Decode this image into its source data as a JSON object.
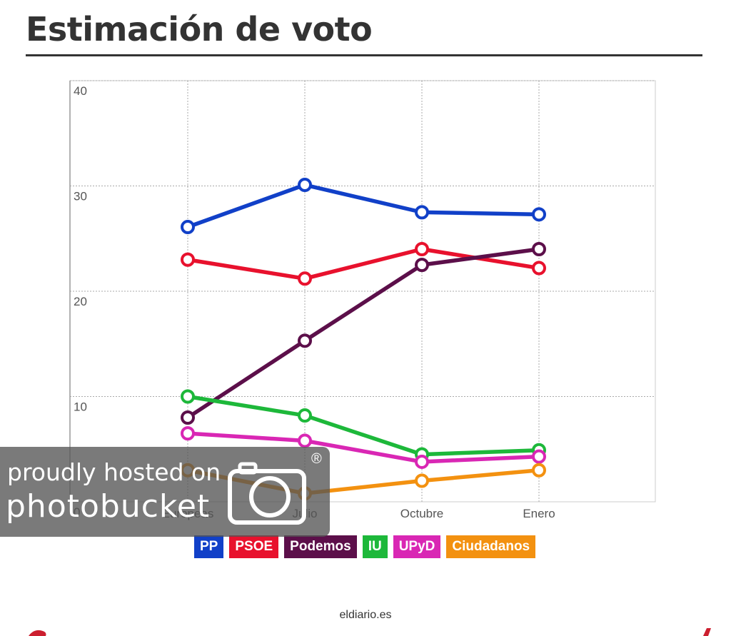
{
  "header": {
    "title": "Estimación de voto"
  },
  "chart_data": {
    "type": "line",
    "title": "Estimación de voto",
    "categories": [
      "Europeas",
      "Julio",
      "Octubre",
      "Enero"
    ],
    "ylim": [
      0,
      40
    ],
    "yticks": [
      0,
      10,
      20,
      30,
      40
    ],
    "grid": true,
    "legend_position": "bottom",
    "series": [
      {
        "name": "PP",
        "color": "#1140c8",
        "values": [
          26.1,
          30.1,
          27.5,
          27.3
        ]
      },
      {
        "name": "PSOE",
        "color": "#e8112d",
        "values": [
          23.0,
          21.2,
          24.0,
          22.2
        ]
      },
      {
        "name": "Podemos",
        "color": "#5c0f4a",
        "values": [
          8.0,
          15.3,
          22.5,
          24.0
        ]
      },
      {
        "name": "IU",
        "color": "#1db83a",
        "values": [
          10.0,
          8.2,
          4.5,
          4.9
        ]
      },
      {
        "name": "UPyD",
        "color": "#d927b4",
        "values": [
          6.5,
          5.8,
          3.8,
          4.3
        ]
      },
      {
        "name": "Ciudadanos",
        "color": "#f39110",
        "values": [
          3.0,
          0.8,
          2.0,
          3.0
        ]
      }
    ]
  },
  "footer": {
    "source": "eldiario.es"
  },
  "watermark": {
    "line1": "proudly hosted on",
    "line2": "photobucket",
    "reg_mark": "®",
    "icon": "camera-icon"
  }
}
